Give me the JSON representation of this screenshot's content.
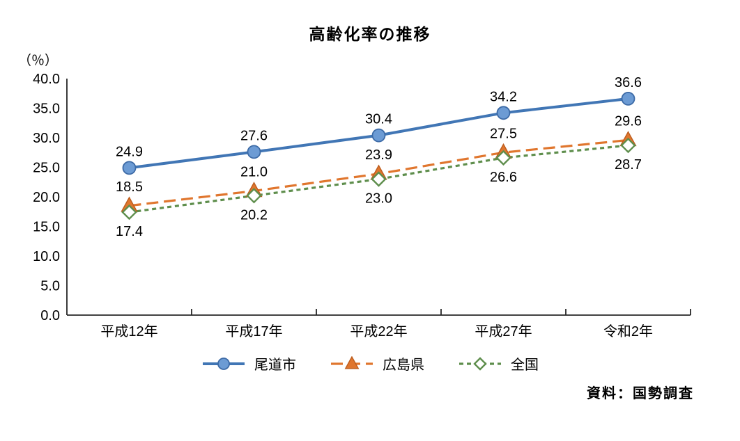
{
  "title": "高齢化率の推移",
  "y_axis": {
    "unit_label": "（％）",
    "min": 0,
    "max": 40,
    "tick_step": 5,
    "tick_decimals": 1,
    "tick_labels": [
      "0.0",
      "5.0",
      "10.0",
      "15.0",
      "20.0",
      "25.0",
      "30.0",
      "35.0",
      "40.0"
    ]
  },
  "x_axis": {
    "categories": [
      "平成12年",
      "平成17年",
      "平成22年",
      "平成27年",
      "令和2年"
    ]
  },
  "source_note": "資料：国勢調査",
  "colors": {
    "text": "#000000",
    "axis": "#262626",
    "background": "#ffffff",
    "onomichi_blue": "#4176B5",
    "hiroshima_orange": "#E0762E",
    "national_green": "#5E8E4C"
  },
  "chart_data": {
    "type": "line",
    "title": "高齢化率の推移",
    "xlabel": "",
    "ylabel": "（％）",
    "ylim": [
      0,
      40
    ],
    "ytick_step": 5,
    "grid": false,
    "legend_position": "bottom",
    "categories": [
      "平成12年",
      "平成17年",
      "平成22年",
      "平成27年",
      "令和2年"
    ],
    "series": [
      {
        "key": "onomichi-city",
        "name": "尾道市",
        "values": [
          24.9,
          27.6,
          30.4,
          34.2,
          36.6
        ],
        "color": "#4176B5",
        "marker": "circle",
        "marker_fill": "#6C9BD4",
        "marker_stroke": "#3C6AA6",
        "line_style": "solid",
        "label_position": "above"
      },
      {
        "key": "hiroshima-pref",
        "name": "広島県",
        "values": [
          18.5,
          21.0,
          23.9,
          27.5,
          29.6
        ],
        "color": "#E0762E",
        "marker": "triangle",
        "marker_fill": "#E0762E",
        "marker_stroke": "#BC5D1E",
        "line_style": "long-dash",
        "label_position": "above"
      },
      {
        "key": "national",
        "name": "全国",
        "values": [
          17.4,
          20.2,
          23.0,
          26.6,
          28.7
        ],
        "color": "#5E8E4C",
        "marker": "diamond-open",
        "marker_fill": "#FFFFFF",
        "marker_stroke": "#5E8E4C",
        "line_style": "short-dash",
        "label_position": "below"
      }
    ]
  }
}
